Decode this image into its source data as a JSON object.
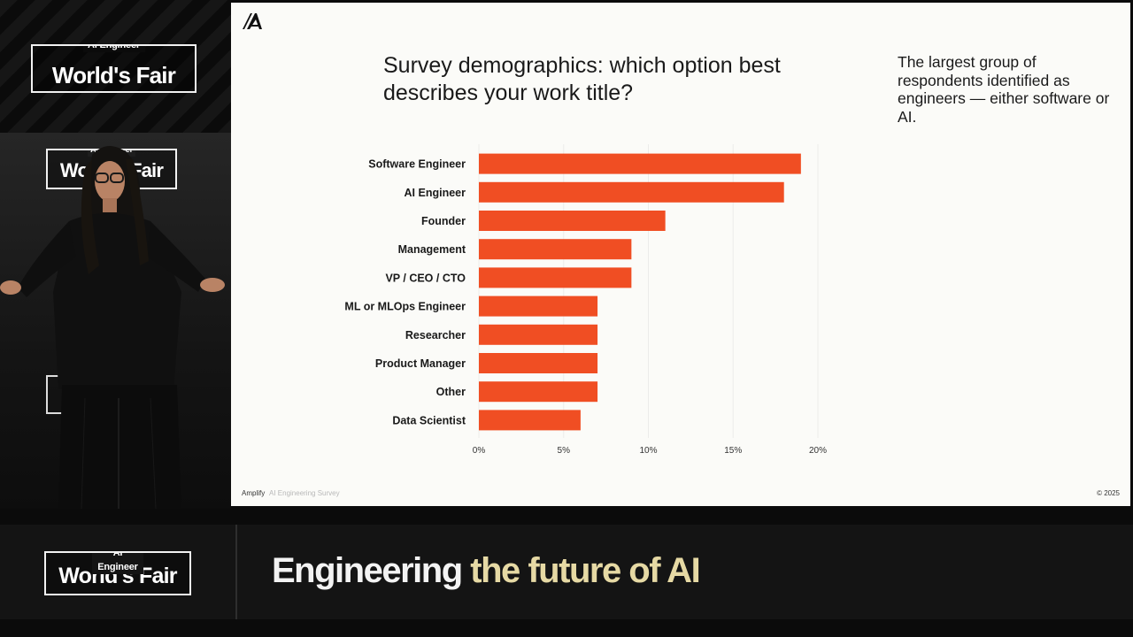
{
  "event": {
    "logo_super": "AI Engineer",
    "logo_main": "World's Fair",
    "tagline_part1": "Engineering ",
    "tagline_part2": "the future of AI"
  },
  "slide": {
    "title": "Survey demographics: which option best describes your work title?",
    "note": "The largest group of respondents identified as engineers — either software or AI.",
    "footer_brand": "Amplify",
    "footer_subtitle": "AI Engineering Survey",
    "footer_year": "© 2025"
  },
  "colors": {
    "bar": "#f04e23",
    "tagline_highlight": "#e6d9a4"
  },
  "chart_data": {
    "type": "bar",
    "orientation": "horizontal",
    "title": "Survey demographics: which option best describes your work title?",
    "categories": [
      "Software Engineer",
      "AI Engineer",
      "Founder",
      "Management",
      "VP / CEO / CTO",
      "ML or MLOps Engineer",
      "Researcher",
      "Product Manager",
      "Other",
      "Data Scientist"
    ],
    "values": [
      19,
      18,
      11,
      9,
      9,
      7,
      7,
      7,
      7,
      6
    ],
    "unit": "%",
    "xlim": [
      0,
      20
    ],
    "ticks": [
      0,
      5,
      10,
      15,
      20
    ],
    "tick_labels": [
      "0%",
      "5%",
      "10%",
      "15%",
      "20%"
    ],
    "grid": true
  }
}
